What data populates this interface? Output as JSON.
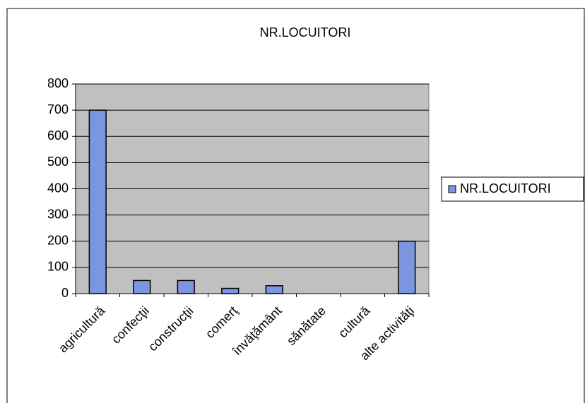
{
  "chart_data": {
    "type": "bar",
    "title": "NR.LOCUITORI",
    "categories": [
      "agricultură",
      "confecţii",
      "construcţii",
      "comerţ",
      "învăţământ",
      "sănătate",
      "cultură",
      "alte activităţi"
    ],
    "series": [
      {
        "name": "NR.LOCUITORI",
        "color": "#7b96e0",
        "values": [
          700,
          50,
          50,
          20,
          30,
          0,
          0,
          200
        ]
      }
    ],
    "ylim": [
      0,
      800
    ],
    "yticks": [
      0,
      100,
      200,
      300,
      400,
      500,
      600,
      700,
      800
    ],
    "grid": true,
    "legend": "right"
  }
}
